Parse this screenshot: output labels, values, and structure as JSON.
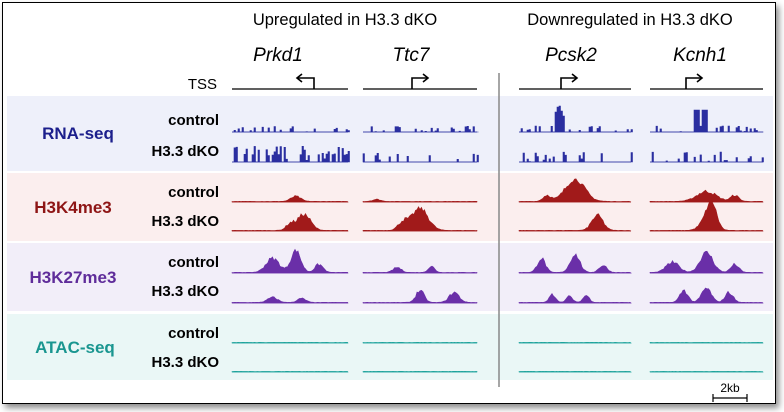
{
  "headers": {
    "upregulated": "Upregulated in H3.3 dKO",
    "downregulated": "Downregulated in H3.3 dKO"
  },
  "genes": [
    {
      "name": "Prkd1",
      "strand": "minus"
    },
    {
      "name": "Ttc7",
      "strand": "plus"
    },
    {
      "name": "Pcsk2",
      "strand": "plus"
    },
    {
      "name": "Kcnh1",
      "strand": "plus"
    }
  ],
  "tss_label": "TSS",
  "tracks": [
    {
      "assay": "RNA-seq",
      "color": "#2b2fa0",
      "bg": "#eef0fa",
      "label_color": "#1c1f8c",
      "samples": [
        "control",
        "H3.3 dKO"
      ]
    },
    {
      "assay": "H3K4me3",
      "color": "#a11a1a",
      "bg": "#fbeeee",
      "label_color": "#8e1515",
      "samples": [
        "control",
        "H3.3 dKO"
      ]
    },
    {
      "assay": "H3K27me3",
      "color": "#6a2fa8",
      "bg": "#f2eef9",
      "label_color": "#5f2c9a",
      "samples": [
        "control",
        "H3.3 dKO"
      ]
    },
    {
      "assay": "ATAC-seq",
      "color": "#1fa39c",
      "bg": "#eaf7f6",
      "label_color": "#1a9690",
      "samples": [
        "control",
        "H3.3 dKO"
      ]
    }
  ],
  "scale_bar": "2kb"
}
